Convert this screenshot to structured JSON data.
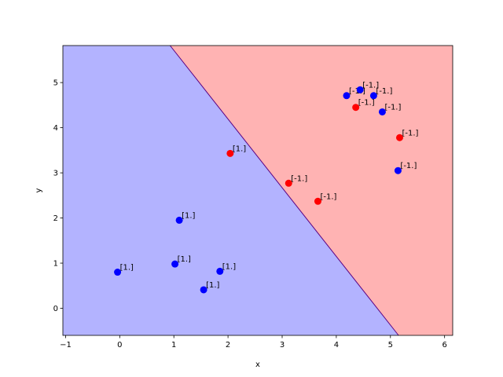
{
  "chart_data": {
    "type": "scatter",
    "title": "",
    "xlabel": "x",
    "ylabel": "y",
    "xlim": [
      -1.05,
      6.15
    ],
    "ylim": [
      -0.6,
      5.82
    ],
    "xticks": [
      -1,
      0,
      1,
      2,
      3,
      4,
      5,
      6
    ],
    "yticks": [
      0,
      1,
      2,
      3,
      4,
      5
    ],
    "grid": false,
    "colors": {
      "region_positive": "#b3b3ff",
      "region_negative": "#ffb3b3",
      "boundary": "#5a0082",
      "point_blue": "#0000ff",
      "point_red": "#ff0000"
    },
    "decision_boundary": {
      "from": [
        0.93,
        5.82
      ],
      "to": [
        5.15,
        -0.6
      ]
    },
    "points": [
      {
        "x": -0.04,
        "y": 0.8,
        "color": "blue",
        "label": "[1.]"
      },
      {
        "x": 1.55,
        "y": 0.41,
        "color": "blue",
        "label": "[1.]"
      },
      {
        "x": 1.02,
        "y": 0.98,
        "color": "blue",
        "label": "[1.]"
      },
      {
        "x": 1.85,
        "y": 0.82,
        "color": "blue",
        "label": "[1.]"
      },
      {
        "x": 1.1,
        "y": 1.95,
        "color": "blue",
        "label": "[1.]"
      },
      {
        "x": 2.04,
        "y": 3.43,
        "color": "red",
        "label": "[1.]"
      },
      {
        "x": 3.12,
        "y": 2.77,
        "color": "red",
        "label": "[-1.]"
      },
      {
        "x": 3.66,
        "y": 2.37,
        "color": "red",
        "label": "[-1.]"
      },
      {
        "x": 5.14,
        "y": 3.05,
        "color": "blue",
        "label": "[-1.]"
      },
      {
        "x": 5.17,
        "y": 3.78,
        "color": "red",
        "label": "[-1.]"
      },
      {
        "x": 4.85,
        "y": 4.35,
        "color": "blue",
        "label": "[-1.]"
      },
      {
        "x": 4.36,
        "y": 4.45,
        "color": "red",
        "label": "[-1.]"
      },
      {
        "x": 4.19,
        "y": 4.71,
        "color": "blue",
        "label": "[-1.]"
      },
      {
        "x": 4.69,
        "y": 4.71,
        "color": "blue",
        "label": "[-1.]"
      },
      {
        "x": 4.44,
        "y": 4.84,
        "color": "blue",
        "label": "[-1.]"
      }
    ]
  }
}
